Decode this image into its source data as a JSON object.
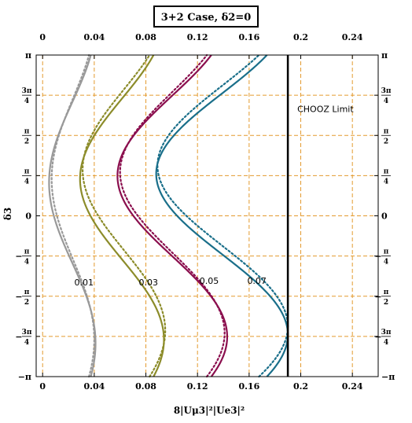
{
  "chart_data": {
    "type": "line",
    "title": "3+2 Case, δ2=0",
    "xlabel": "8|Uμ3|²|Ue3|²",
    "ylabel": "δ3",
    "xlim": [
      -0.005,
      0.26
    ],
    "ylim": [
      -3.1416,
      3.1416
    ],
    "xticks": [
      0,
      0.04,
      0.08,
      0.12,
      0.16,
      0.2,
      0.24
    ],
    "xtick_labels": [
      "0",
      "0.04",
      "0.08",
      "0.12",
      "0.16",
      "0.2",
      "0.24"
    ],
    "yticks": [
      {
        "value": -3.1416,
        "label": "−π"
      },
      {
        "value": -2.3562,
        "label": "−3π/4"
      },
      {
        "value": -1.5708,
        "label": "−π/2"
      },
      {
        "value": -0.7854,
        "label": "−π/4"
      },
      {
        "value": 0,
        "label": "0"
      },
      {
        "value": 0.7854,
        "label": "π/4"
      },
      {
        "value": 1.5708,
        "label": "π/2"
      },
      {
        "value": 2.3562,
        "label": "3π/4"
      },
      {
        "value": 3.1416,
        "label": "π"
      }
    ],
    "grid": true,
    "chooz_limit": {
      "x": 0.19,
      "label": "CHOOZ Limit"
    },
    "series": [
      {
        "label": "0.01",
        "color": "#999999",
        "style": "solid",
        "min": 0.005,
        "max": 0.041,
        "phase": 0.65
      },
      {
        "label": "0.01",
        "color": "#999999",
        "style": "dotted",
        "min": 0.007,
        "max": 0.04,
        "phase": 0.72
      },
      {
        "label": "0.03",
        "color": "#8c8c2a",
        "style": "solid",
        "min": 0.029,
        "max": 0.094,
        "phase": 0.72
      },
      {
        "label": "0.03",
        "color": "#8c8c2a",
        "style": "dotted",
        "min": 0.031,
        "max": 0.095,
        "phase": 0.9
      },
      {
        "label": "0.05",
        "color": "#8b0f4e",
        "style": "solid",
        "min": 0.058,
        "max": 0.143,
        "phase": 0.78
      },
      {
        "label": "0.05",
        "color": "#8b0f4e",
        "style": "dotted",
        "min": 0.06,
        "max": 0.141,
        "phase": 0.85
      },
      {
        "label": "0.07",
        "color": "#1a6f8a",
        "style": "solid",
        "min": 0.088,
        "max": 0.19,
        "phase": 0.82
      },
      {
        "label": "0.07",
        "color": "#1a6f8a",
        "style": "dotted",
        "min": 0.089,
        "max": 0.19,
        "phase": 0.98
      }
    ],
    "series_labels": [
      {
        "text": "0.01",
        "x": 0.032,
        "y": -1.36
      },
      {
        "text": "0.03",
        "x": 0.082,
        "y": -1.36
      },
      {
        "text": "0.05",
        "x": 0.129,
        "y": -1.33
      },
      {
        "text": "0.07",
        "x": 0.166,
        "y": -1.33
      }
    ]
  }
}
